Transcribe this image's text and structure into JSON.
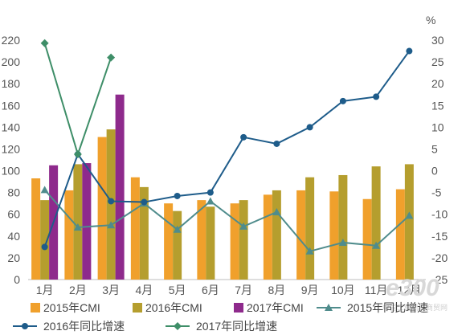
{
  "chart_data": {
    "type": "bar",
    "categories": [
      "1月",
      "2月",
      "3月",
      "4月",
      "5月",
      "6月",
      "7月",
      "8月",
      "9月",
      "10月",
      "11月",
      "12月"
    ],
    "y_left": {
      "range": [
        0,
        220
      ],
      "ticks": [
        0,
        20,
        40,
        60,
        80,
        100,
        120,
        140,
        160,
        180,
        200,
        220
      ]
    },
    "y_right": {
      "label": "%",
      "range": [
        -25,
        30
      ],
      "ticks": [
        -25,
        -20,
        -15,
        -10,
        -5,
        0,
        5,
        10,
        15,
        20,
        25,
        30
      ]
    },
    "series": [
      {
        "name": "2015年CMI",
        "kind": "bar",
        "axis": "left",
        "color": "#F0A02C",
        "values": [
          93,
          82,
          131,
          94,
          70,
          73,
          70,
          78,
          82,
          81,
          74,
          83
        ]
      },
      {
        "name": "2016年CMI",
        "kind": "bar",
        "axis": "left",
        "color": "#B59E2E",
        "values": [
          73,
          106,
          138,
          85,
          63,
          67,
          73,
          82,
          94,
          96,
          104,
          106
        ]
      },
      {
        "name": "2017年CMI",
        "kind": "bar",
        "axis": "left",
        "color": "#8E2A8C",
        "values": [
          105,
          107,
          170,
          null,
          null,
          null,
          null,
          null,
          null,
          null,
          null,
          null
        ]
      },
      {
        "name": "2015年同比增速",
        "kind": "line",
        "axis": "right",
        "color": "#4F8C8C",
        "marker": "triangle",
        "values": [
          -4.4,
          -13.0,
          -12.5,
          -7.5,
          -13.5,
          -7.0,
          -12.8,
          -9.5,
          -18.5,
          -16.5,
          -17.2,
          -10.3
        ]
      },
      {
        "name": "2016年同比增速",
        "kind": "line",
        "axis": "right",
        "color": "#1E5C8A",
        "marker": "circle",
        "values": [
          -17.5,
          3.8,
          -7.0,
          -7.2,
          -5.8,
          -5.0,
          7.7,
          6.2,
          10.0,
          16.0,
          17.0,
          27.5
        ]
      },
      {
        "name": "2017年同比增速",
        "kind": "line",
        "axis": "right",
        "color": "#3E8E68",
        "marker": "diamond",
        "values": [
          29.3,
          3.8,
          26.0,
          null,
          null,
          null,
          null,
          null,
          null,
          null,
          null,
          null
        ]
      }
    ]
  },
  "watermark": {
    "main": "e300",
    "sub": "中国工程机械商贸网"
  }
}
